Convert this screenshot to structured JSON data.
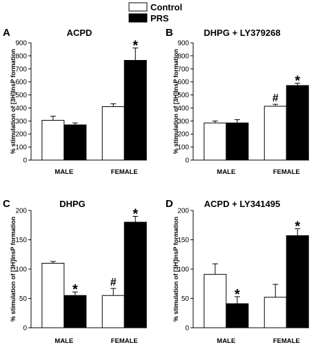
{
  "legend": {
    "position": "top-center",
    "items": [
      {
        "label": "Control",
        "fill": "#ffffff"
      },
      {
        "label": "PRS",
        "fill": "#000000"
      }
    ]
  },
  "chart_data": [
    {
      "panel": "A",
      "type": "bar",
      "title": "ACPD",
      "ylabel": "% stimulation of [3H]InsP formation",
      "ylim": [
        0,
        900
      ],
      "yticks": [
        0,
        100,
        200,
        300,
        400,
        500,
        600,
        700,
        800,
        900
      ],
      "categories": [
        "MALE",
        "FEMALE"
      ],
      "series": [
        {
          "name": "Control",
          "values": [
            305,
            410
          ],
          "errors": [
            32,
            22
          ],
          "marks": [
            "",
            ""
          ]
        },
        {
          "name": "PRS",
          "values": [
            270,
            765
          ],
          "errors": [
            15,
            95
          ],
          "marks": [
            "",
            "*"
          ]
        }
      ]
    },
    {
      "panel": "B",
      "type": "bar",
      "title": "DHPG + LY379268",
      "ylabel": "% stimulation of [3H]InsP formation",
      "ylim": [
        0,
        900
      ],
      "yticks": [
        0,
        100,
        200,
        300,
        400,
        500,
        600,
        700,
        800,
        900
      ],
      "categories": [
        "MALE",
        "FEMALE"
      ],
      "series": [
        {
          "name": "Control",
          "values": [
            285,
            413
          ],
          "errors": [
            15,
            15
          ],
          "marks": [
            "",
            "#"
          ]
        },
        {
          "name": "PRS",
          "values": [
            285,
            572
          ],
          "errors": [
            25,
            18
          ],
          "marks": [
            "",
            "*"
          ]
        }
      ]
    },
    {
      "panel": "C",
      "type": "bar",
      "title": "DHPG",
      "ylabel": "% stimulation of [3H]InsP formation",
      "ylim": [
        0,
        200
      ],
      "yticks": [
        0,
        50,
        100,
        150,
        200
      ],
      "categories": [
        "MALE",
        "FEMALE"
      ],
      "series": [
        {
          "name": "Control",
          "values": [
            110,
            55
          ],
          "errors": [
            3,
            12
          ],
          "marks": [
            "",
            "#"
          ]
        },
        {
          "name": "PRS",
          "values": [
            55,
            180
          ],
          "errors": [
            6,
            10
          ],
          "marks": [
            "*",
            "*"
          ]
        }
      ]
    },
    {
      "panel": "D",
      "type": "bar",
      "title": "ACPD + LY341495",
      "ylabel": "% stimulation of [3H]InsP formation",
      "ylim": [
        0,
        200
      ],
      "yticks": [
        0,
        50,
        100,
        150,
        200
      ],
      "categories": [
        "MALE",
        "FEMALE"
      ],
      "series": [
        {
          "name": "Control",
          "values": [
            91,
            52
          ],
          "errors": [
            18,
            22
          ],
          "marks": [
            "",
            ""
          ]
        },
        {
          "name": "PRS",
          "values": [
            41,
            157
          ],
          "errors": [
            12,
            12
          ],
          "marks": [
            "*",
            "*"
          ]
        }
      ]
    }
  ]
}
